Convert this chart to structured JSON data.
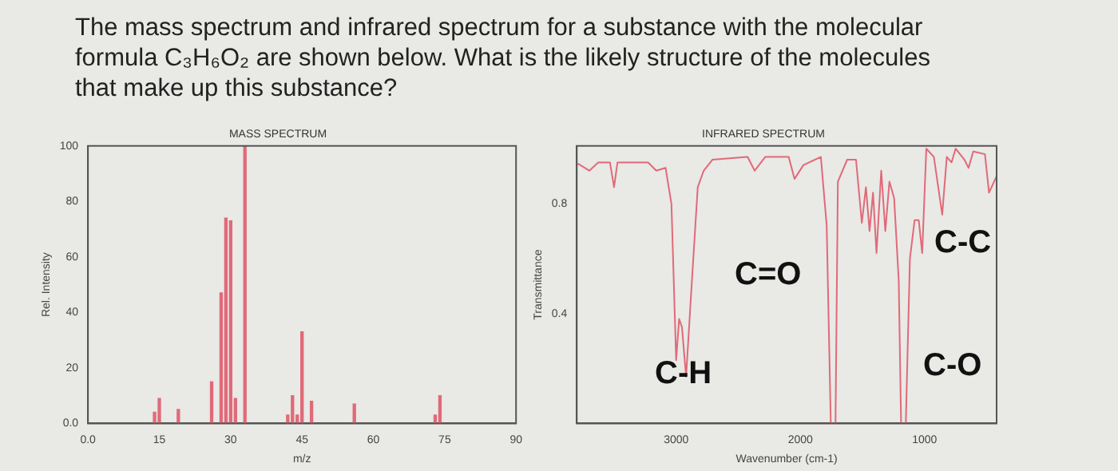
{
  "chart_data": [
    {
      "type": "bar",
      "title": "MASS SPECTRUM",
      "xlabel": "m/z",
      "ylabel": "Rel. Intensity",
      "annotations": [
        "The mass spectrum and infrared spectrum for a substance with the molecular formula C₃H₆O₂ are shown below. What is the likely structure of the molecules that make up this substance?"
      ],
      "x": [
        14,
        15,
        19,
        26,
        28,
        29,
        30,
        31,
        33,
        42,
        43,
        44,
        45,
        47,
        56,
        73,
        74
      ],
      "series": [
        {
          "color": "#e06a78",
          "values": [
            4,
            9,
            5,
            15,
            47,
            74,
            73,
            9,
            100,
            3,
            10,
            3,
            33,
            8,
            7,
            3,
            10
          ]
        }
      ],
      "xlim": [
        0,
        90
      ],
      "xticks": [
        {
          "value": 0,
          "label": "0.0"
        },
        15,
        30,
        45,
        60,
        75,
        90
      ],
      "ylim": [
        0,
        100
      ],
      "yticks": [
        {
          "value": 0,
          "label": "0.0"
        },
        20,
        40,
        60,
        80,
        100
      ],
      "grid": false,
      "legend": false
    },
    {
      "type": "line",
      "title": "INFRARED SPECTRUM",
      "xlabel": "Wavenumber (cm-1)",
      "ylabel": "Transmittance",
      "annotations": [
        "C-H",
        "C=O",
        "C-O",
        "C-C"
      ],
      "x": [
        3792,
        3698,
        3627,
        3533,
        3500,
        3472,
        3226,
        3160,
        3085,
        3038,
        3000,
        2976,
        2953,
        2920,
        2873,
        2826,
        2778,
        2708,
        2425,
        2368,
        2283,
        2094,
        2047,
        1976,
        1835,
        1788,
        1755,
        1717,
        1698,
        1623,
        1552,
        1505,
        1472,
        1443,
        1415,
        1387,
        1349,
        1316,
        1283,
        1245,
        1208,
        1189,
        1151,
        1118,
        1080,
        1047,
        1019,
        986,
        925,
        858,
        821,
        783,
        750,
        679,
        646,
        608,
        514,
        481,
        420
      ],
      "series": [
        {
          "color": "#e06a78",
          "values": [
            0.946,
            0.92,
            0.95,
            0.95,
            0.86,
            0.95,
            0.95,
            0.92,
            0.93,
            0.8,
            0.23,
            0.38,
            0.35,
            0.17,
            0.52,
            0.86,
            0.92,
            0.96,
            0.97,
            0.92,
            0.97,
            0.97,
            0.89,
            0.94,
            0.97,
            0.72,
            0,
            0,
            0.88,
            0.96,
            0.96,
            0.73,
            0.86,
            0.7,
            0.84,
            0.62,
            0.92,
            0.7,
            0.88,
            0.82,
            0.52,
            0,
            0,
            0.6,
            0.74,
            0.74,
            0.62,
            1.0,
            0.97,
            0.76,
            0.97,
            0.95,
            1.0,
            0.96,
            0.93,
            0.99,
            0.98,
            0.84,
            0.9
          ]
        }
      ],
      "xlim": [
        3800,
        420
      ],
      "xticks": [
        3000,
        2000,
        1000
      ],
      "ylim": [
        0,
        1.01
      ],
      "yticks": [
        0.4,
        0.8
      ],
      "grid": false,
      "legend": false,
      "marker": "none"
    }
  ]
}
